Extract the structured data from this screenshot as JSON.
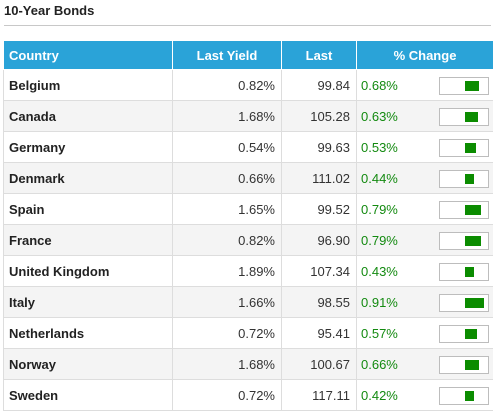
{
  "title": "10-Year Bonds",
  "columns": {
    "country": "Country",
    "last_yield": "Last Yield",
    "last": "Last",
    "change": "% Change"
  },
  "accent_color": "#2aa3d8",
  "change_color": "#138a10",
  "bar_color": "#0b8c00",
  "rows": [
    {
      "country": "Belgium",
      "last_yield": "0.82%",
      "last": "99.84",
      "change": "0.68%",
      "change_value": 0.68
    },
    {
      "country": "Canada",
      "last_yield": "1.68%",
      "last": "105.28",
      "change": "0.63%",
      "change_value": 0.63
    },
    {
      "country": "Germany",
      "last_yield": "0.54%",
      "last": "99.63",
      "change": "0.53%",
      "change_value": 0.53
    },
    {
      "country": "Denmark",
      "last_yield": "0.66%",
      "last": "111.02",
      "change": "0.44%",
      "change_value": 0.44
    },
    {
      "country": "Spain",
      "last_yield": "1.65%",
      "last": "99.52",
      "change": "0.79%",
      "change_value": 0.79
    },
    {
      "country": "France",
      "last_yield": "0.82%",
      "last": "96.90",
      "change": "0.79%",
      "change_value": 0.79
    },
    {
      "country": "United Kingdom",
      "last_yield": "1.89%",
      "last": "107.34",
      "change": "0.43%",
      "change_value": 0.43
    },
    {
      "country": "Italy",
      "last_yield": "1.66%",
      "last": "98.55",
      "change": "0.91%",
      "change_value": 0.91
    },
    {
      "country": "Netherlands",
      "last_yield": "0.72%",
      "last": "95.41",
      "change": "0.57%",
      "change_value": 0.57
    },
    {
      "country": "Norway",
      "last_yield": "1.68%",
      "last": "100.67",
      "change": "0.66%",
      "change_value": 0.66
    },
    {
      "country": "Sweden",
      "last_yield": "0.72%",
      "last": "117.11",
      "change": "0.42%",
      "change_value": 0.42
    }
  ]
}
